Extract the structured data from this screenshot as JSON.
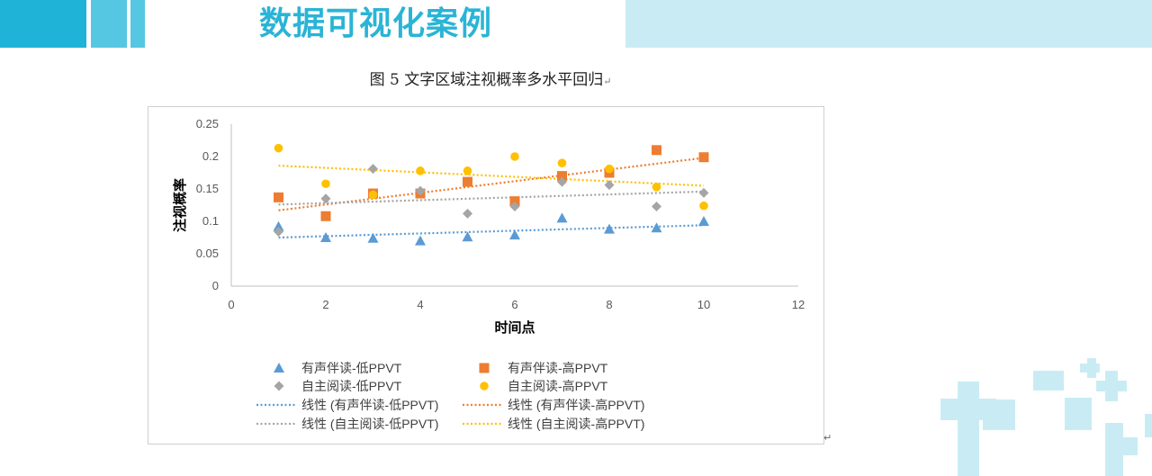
{
  "slide": {
    "title": "数据可视化案例",
    "caption": "图 5 文字区域注视概率多水平回归",
    "paragraph_mark": "↵"
  },
  "colors": {
    "header_dark": "#1fb3d8",
    "header_mid": "#55c7e2",
    "header_light": "#c9ecf4",
    "series_low_sound": "#5b9bd5",
    "series_high_sound": "#ed7d31",
    "series_low_self": "#a5a5a5",
    "series_high_self": "#ffc000"
  },
  "chart_data": {
    "type": "scatter",
    "title": "",
    "xlabel": "时间点",
    "ylabel": "注视概率",
    "xlim": [
      0,
      12
    ],
    "ylim": [
      0,
      0.25
    ],
    "xticks": [
      0,
      2,
      4,
      6,
      8,
      10,
      12
    ],
    "yticks": [
      0,
      0.05,
      0.1,
      0.15,
      0.2,
      0.25
    ],
    "grid": false,
    "legend_position": "bottom",
    "series": [
      {
        "name": "有声伴读-低PPVT",
        "marker": "triangle",
        "color": "#5b9bd5",
        "x": [
          1,
          2,
          3,
          4,
          5,
          6,
          7,
          8,
          9,
          10
        ],
        "y": [
          0.092,
          0.075,
          0.074,
          0.07,
          0.076,
          0.079,
          0.105,
          0.088,
          0.09,
          0.1
        ]
      },
      {
        "name": "有声伴读-高PPVT",
        "marker": "square",
        "color": "#ed7d31",
        "x": [
          1,
          2,
          3,
          4,
          5,
          6,
          7,
          8,
          9,
          10
        ],
        "y": [
          0.137,
          0.108,
          0.143,
          0.143,
          0.161,
          0.131,
          0.17,
          0.175,
          0.21,
          0.199
        ]
      },
      {
        "name": "自主阅读-低PPVT",
        "marker": "diamond",
        "color": "#a5a5a5",
        "x": [
          1,
          2,
          3,
          4,
          5,
          6,
          7,
          8,
          9,
          10
        ],
        "y": [
          0.084,
          0.135,
          0.181,
          0.147,
          0.112,
          0.123,
          0.161,
          0.156,
          0.123,
          0.144
        ]
      },
      {
        "name": "自主阅读-高PPVT",
        "marker": "circle",
        "color": "#ffc000",
        "x": [
          1,
          2,
          3,
          4,
          5,
          6,
          7,
          8,
          9,
          10
        ],
        "y": [
          0.213,
          0.158,
          0.141,
          0.178,
          0.178,
          0.2,
          0.19,
          0.181,
          0.153,
          0.124
        ]
      }
    ],
    "trendlines": [
      {
        "name": "线性 (有声伴读-低PPVT)",
        "color": "#5b9bd5",
        "x": [
          1,
          10
        ],
        "y": [
          0.075,
          0.094
        ]
      },
      {
        "name": "线性 (有声伴读-高PPVT)",
        "color": "#ed7d31",
        "x": [
          1,
          10
        ],
        "y": [
          0.117,
          0.198
        ]
      },
      {
        "name": "线性 (自主阅读-低PPVT)",
        "color": "#a5a5a5",
        "x": [
          1,
          10
        ],
        "y": [
          0.126,
          0.146
        ]
      },
      {
        "name": "线性 (自主阅读-高PPVT)",
        "color": "#ffc000",
        "x": [
          1,
          10
        ],
        "y": [
          0.186,
          0.155
        ]
      }
    ]
  }
}
